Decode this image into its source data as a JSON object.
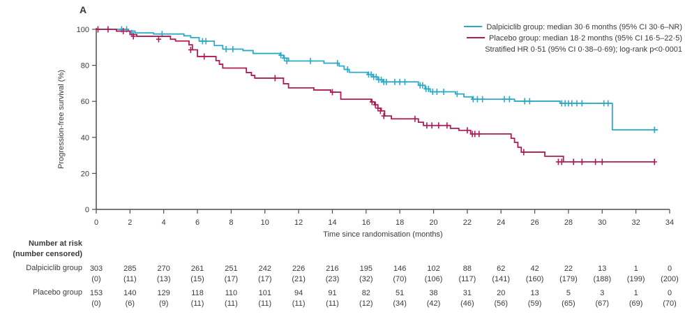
{
  "chart_data": {
    "type": "line",
    "subtype": "kaplan-meier-step-curves",
    "panel_label": "A",
    "xlabel": "Time since randomisation (months)",
    "ylabel": "Progression-free survival (%)",
    "xlim": [
      0,
      34
    ],
    "ylim": [
      0,
      100
    ],
    "xticks": [
      0,
      2,
      4,
      6,
      8,
      10,
      12,
      14,
      16,
      18,
      20,
      22,
      24,
      26,
      28,
      30,
      32,
      34
    ],
    "yticks": [
      0,
      20,
      40,
      60,
      80,
      100
    ],
    "grid": false,
    "legend_position": "top-right",
    "annotation": "Stratified HR 0·51 (95% CI 0·38–0·69); log-rank p<0·0001",
    "axis_color": "#4d4d4f",
    "text_color": "#3a3a3c",
    "series": [
      {
        "name": "Dalpiciclib group",
        "legend_label": "Dalpiciclib group: median 30·6 months (95% CI 30·6–NR)",
        "median_months": 30.6,
        "color": "#2BA9C8",
        "steps": [
          [
            0,
            100
          ],
          [
            1.9,
            99.0
          ],
          [
            2.3,
            98.0
          ],
          [
            3.4,
            97.4
          ],
          [
            5.2,
            96.4
          ],
          [
            5.6,
            95.4
          ],
          [
            6.1,
            93.4
          ],
          [
            7.0,
            91.0
          ],
          [
            7.5,
            89.0
          ],
          [
            8.7,
            88.2
          ],
          [
            9.3,
            86.6
          ],
          [
            10.9,
            85.6
          ],
          [
            11.1,
            84.0
          ],
          [
            11.4,
            82.4
          ],
          [
            13.5,
            81.2
          ],
          [
            14.4,
            79.6
          ],
          [
            14.7,
            77.7
          ],
          [
            15.0,
            76.1
          ],
          [
            16.1,
            74.9
          ],
          [
            16.4,
            73.6
          ],
          [
            16.7,
            72.0
          ],
          [
            17.0,
            70.8
          ],
          [
            19.1,
            68.9
          ],
          [
            19.5,
            66.9
          ],
          [
            19.8,
            65.3
          ],
          [
            21.3,
            64.1
          ],
          [
            21.8,
            62.5
          ],
          [
            22.3,
            61.2
          ],
          [
            24.8,
            60.1
          ],
          [
            27.5,
            58.9
          ],
          [
            30.6,
            44.2
          ],
          [
            33.3,
            44.2
          ]
        ],
        "censor_marks": [
          [
            1.5,
            100
          ],
          [
            1.8,
            100
          ],
          [
            2.1,
            98.0
          ],
          [
            3.9,
            97.4
          ],
          [
            6.3,
            93.4
          ],
          [
            6.5,
            93.4
          ],
          [
            7.7,
            89.0
          ],
          [
            8.1,
            89.0
          ],
          [
            10.95,
            85.6
          ],
          [
            11.15,
            84.0
          ],
          [
            11.3,
            82.4
          ],
          [
            12.7,
            82.4
          ],
          [
            14.3,
            81.2
          ],
          [
            14.9,
            77.7
          ],
          [
            16.15,
            74.9
          ],
          [
            16.3,
            74.9
          ],
          [
            16.45,
            73.6
          ],
          [
            16.6,
            73.6
          ],
          [
            16.75,
            72.0
          ],
          [
            16.9,
            72.0
          ],
          [
            17.05,
            70.8
          ],
          [
            17.2,
            70.8
          ],
          [
            17.7,
            70.8
          ],
          [
            18.0,
            70.8
          ],
          [
            18.3,
            70.8
          ],
          [
            19.2,
            68.9
          ],
          [
            19.35,
            68.9
          ],
          [
            19.55,
            66.9
          ],
          [
            19.7,
            66.9
          ],
          [
            19.95,
            65.3
          ],
          [
            20.2,
            65.3
          ],
          [
            20.6,
            65.3
          ],
          [
            21.4,
            64.1
          ],
          [
            22.35,
            61.2
          ],
          [
            22.6,
            61.2
          ],
          [
            22.9,
            61.2
          ],
          [
            24.2,
            61.2
          ],
          [
            24.5,
            61.2
          ],
          [
            25.4,
            60.1
          ],
          [
            25.7,
            60.1
          ],
          [
            27.6,
            58.9
          ],
          [
            27.8,
            58.9
          ],
          [
            28.0,
            58.9
          ],
          [
            28.2,
            58.9
          ],
          [
            28.5,
            58.9
          ],
          [
            28.8,
            58.9
          ],
          [
            30.1,
            58.9
          ],
          [
            30.35,
            58.9
          ],
          [
            33.1,
            44.2
          ]
        ]
      },
      {
        "name": "Placebo group",
        "legend_label": "Placebo group: median 18·2 months (95% CI 16·5–22·5)",
        "median_months": 18.2,
        "color": "#B11A55",
        "steps": [
          [
            0,
            100
          ],
          [
            1.2,
            99.0
          ],
          [
            2.0,
            97.1
          ],
          [
            2.4,
            96.1
          ],
          [
            4.4,
            94.5
          ],
          [
            4.7,
            93.5
          ],
          [
            5.5,
            91.4
          ],
          [
            5.7,
            88.6
          ],
          [
            6.0,
            84.9
          ],
          [
            7.1,
            82.6
          ],
          [
            7.3,
            80.6
          ],
          [
            7.5,
            78.5
          ],
          [
            8.9,
            76.0
          ],
          [
            9.2,
            74.4
          ],
          [
            9.4,
            72.9
          ],
          [
            11.1,
            69.8
          ],
          [
            11.4,
            67.5
          ],
          [
            12.9,
            66.3
          ],
          [
            13.9,
            65.1
          ],
          [
            14.5,
            61.2
          ],
          [
            16.3,
            59.7
          ],
          [
            16.5,
            58.1
          ],
          [
            16.7,
            56.2
          ],
          [
            16.9,
            54.7
          ],
          [
            17.1,
            51.9
          ],
          [
            17.5,
            50.3
          ],
          [
            19.1,
            48.4
          ],
          [
            19.4,
            46.6
          ],
          [
            21.0,
            45.0
          ],
          [
            21.5,
            43.9
          ],
          [
            22.2,
            41.9
          ],
          [
            24.6,
            39.5
          ],
          [
            24.8,
            37.2
          ],
          [
            25.0,
            34.5
          ],
          [
            25.2,
            31.8
          ],
          [
            26.6,
            29.5
          ],
          [
            27.7,
            26.4
          ],
          [
            33.1,
            26.4
          ]
        ],
        "censor_marks": [
          [
            0.1,
            100
          ],
          [
            0.7,
            100
          ],
          [
            1.6,
            99.0
          ],
          [
            2.2,
            96.1
          ],
          [
            3.7,
            94.5
          ],
          [
            5.6,
            88.6
          ],
          [
            6.4,
            84.9
          ],
          [
            10.6,
            72.9
          ],
          [
            14.0,
            65.1
          ],
          [
            16.35,
            59.7
          ],
          [
            16.55,
            58.1
          ],
          [
            16.7,
            56.2
          ],
          [
            16.85,
            54.7
          ],
          [
            17.05,
            51.9
          ],
          [
            18.9,
            50.3
          ],
          [
            19.6,
            46.6
          ],
          [
            19.9,
            46.6
          ],
          [
            20.3,
            46.6
          ],
          [
            20.8,
            46.6
          ],
          [
            22.0,
            43.9
          ],
          [
            22.3,
            41.9
          ],
          [
            22.45,
            41.9
          ],
          [
            22.7,
            41.9
          ],
          [
            25.35,
            31.8
          ],
          [
            27.4,
            26.4
          ],
          [
            27.6,
            26.4
          ],
          [
            28.3,
            26.4
          ],
          [
            28.8,
            26.4
          ],
          [
            29.6,
            26.4
          ],
          [
            30.0,
            26.4
          ],
          [
            33.1,
            26.4
          ]
        ]
      }
    ],
    "at_risk_table": {
      "header": [
        "Number at risk",
        "(number censored)"
      ],
      "timepoints": [
        0,
        2,
        4,
        6,
        8,
        10,
        12,
        14,
        16,
        18,
        20,
        22,
        24,
        26,
        28,
        30,
        32,
        34
      ],
      "rows": [
        {
          "label": "Dalpiciclib group",
          "at_risk": [
            303,
            285,
            270,
            261,
            251,
            242,
            226,
            216,
            195,
            146,
            102,
            88,
            62,
            42,
            22,
            13,
            1,
            0
          ],
          "censored": [
            0,
            11,
            13,
            15,
            17,
            17,
            21,
            23,
            32,
            70,
            106,
            117,
            141,
            160,
            179,
            188,
            199,
            200
          ]
        },
        {
          "label": "Placebo group",
          "at_risk": [
            153,
            140,
            129,
            118,
            110,
            101,
            94,
            91,
            82,
            51,
            38,
            31,
            20,
            13,
            5,
            3,
            1,
            0
          ],
          "censored": [
            0,
            6,
            9,
            11,
            11,
            11,
            11,
            11,
            12,
            34,
            42,
            46,
            56,
            59,
            65,
            67,
            69,
            70
          ]
        }
      ]
    }
  }
}
